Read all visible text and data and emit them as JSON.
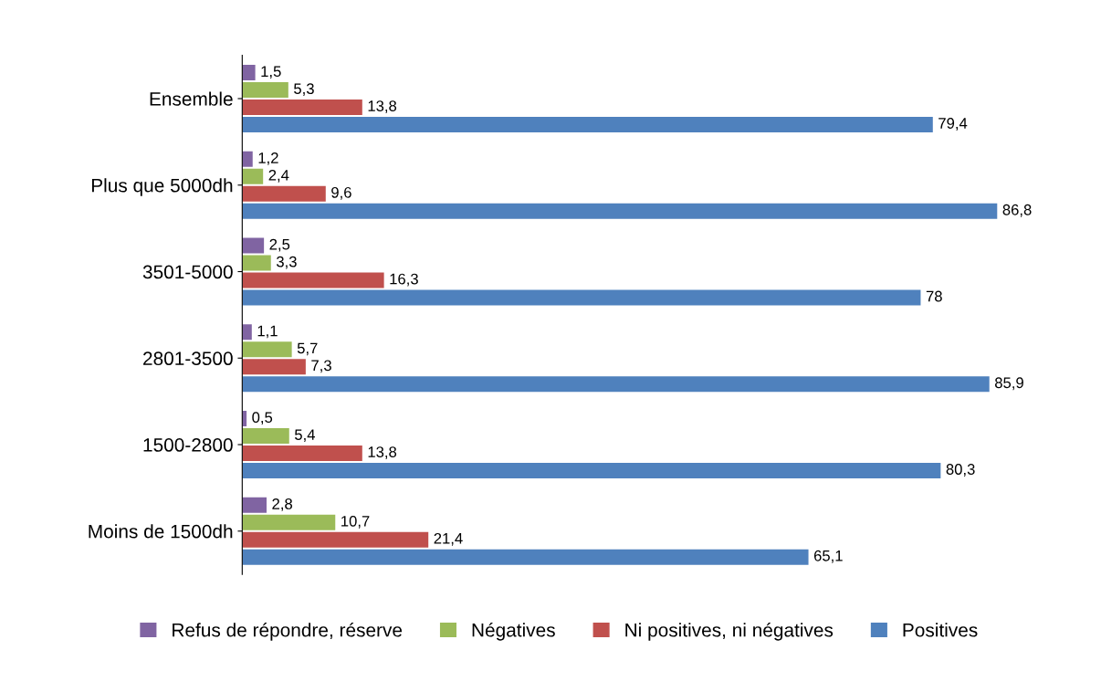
{
  "chart_data": {
    "type": "bar",
    "orientation": "horizontal",
    "categories": [
      "Ensemble",
      "Plus que 5000dh",
      "3501-5000",
      "2801-3500",
      "1500-2800",
      "Moins de 1500dh"
    ],
    "series": [
      {
        "name": "Refus de répondre, réserve",
        "color": "#8064a2",
        "values": [
          1.5,
          1.2,
          2.5,
          1.1,
          0.5,
          2.8
        ],
        "value_labels": [
          "1,5",
          "1,2",
          "2,5",
          "1,1",
          "0,5",
          "2,8"
        ]
      },
      {
        "name": "Négatives",
        "color": "#9bbb59",
        "values": [
          5.3,
          2.4,
          3.3,
          5.7,
          5.4,
          10.7
        ],
        "value_labels": [
          "5,3",
          "2,4",
          "3,3",
          "5,7",
          "5,4",
          "10,7"
        ]
      },
      {
        "name": "Ni positives, ni négatives",
        "color": "#c0504d",
        "values": [
          13.8,
          9.6,
          16.3,
          7.3,
          13.8,
          21.4
        ],
        "value_labels": [
          "13,8",
          "9,6",
          "16,3",
          "7,3",
          "13,8",
          "21,4"
        ]
      },
      {
        "name": "Positives",
        "color": "#4f81bd",
        "values": [
          79.4,
          86.8,
          78,
          85.9,
          80.3,
          65.1
        ],
        "value_labels": [
          "79,4",
          "86,8",
          "78",
          "85,9",
          "80,3",
          "65,1"
        ]
      }
    ],
    "grid": false,
    "legend": "bottom"
  }
}
